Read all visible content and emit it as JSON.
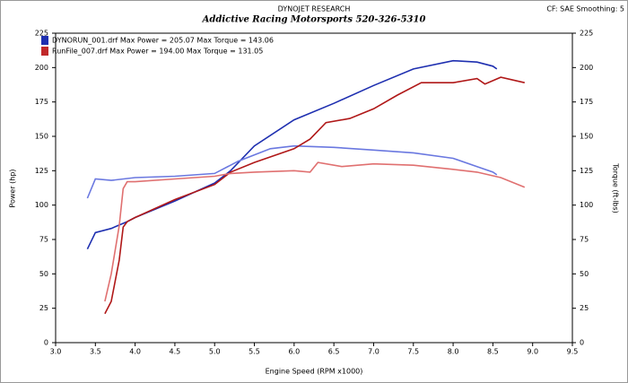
{
  "chart_data": {
    "type": "line",
    "title": "DYNOJET RESEARCH",
    "subtitle": "Addictive Racing Motorsports 520-326-5310",
    "corner_note": "CF: SAE  Smoothing: 5",
    "x_label": "Engine Speed (RPM x1000)",
    "y_label": "Power (hp)",
    "y2_label": "Torque (ft-lbs)",
    "legend": [
      {
        "text": "DYNORUN_001.drf Max Power = 205.07    Max Torque = 143.06",
        "color": "#1e2fb0"
      },
      {
        "text": "RunFile_007.drf Max Power = 194.00   Max Torque = 131.05",
        "color": "#c0282a"
      }
    ],
    "xlim": [
      3,
      9.5
    ],
    "xticks": [
      {
        "value": 3,
        "label": "3.0"
      },
      3.5,
      {
        "value": 4,
        "label": "4.0"
      },
      4.5,
      {
        "value": 5,
        "label": "5.0"
      },
      5.5,
      {
        "value": 6,
        "label": "6.0"
      },
      6.5,
      {
        "value": 7,
        "label": "7.0"
      },
      7.5,
      {
        "value": 8,
        "label": "8.0"
      },
      8.5,
      {
        "value": 9,
        "label": "9.0"
      },
      9.5
    ],
    "ylim": [
      0,
      225
    ],
    "yticks": [
      0,
      25,
      50,
      75,
      100,
      125,
      150,
      175,
      200,
      225
    ],
    "y2lim": [
      0,
      225
    ],
    "y2ticks": [
      0,
      25,
      50,
      75,
      100,
      125,
      150,
      175,
      200,
      225
    ],
    "series": [
      {
        "color": "#1e2fb0",
        "x": [
          3.4,
          3.5,
          3.7,
          3.9,
          4.0,
          4.5,
          5.0,
          5.2,
          5.5,
          6.0,
          6.5,
          7.0,
          7.5,
          8.0,
          8.3,
          8.5,
          8.55
        ],
        "values": [
          68,
          80,
          83,
          88,
          91,
          103,
          116,
          125,
          143,
          162,
          174,
          187,
          199,
          205,
          204,
          201,
          199
        ]
      },
      {
        "color": "#6a78e0",
        "axis": "y2",
        "x": [
          3.4,
          3.5,
          3.7,
          4.0,
          4.5,
          5.0,
          5.3,
          5.7,
          6.0,
          6.5,
          7.0,
          7.5,
          8.0,
          8.3,
          8.5,
          8.55
        ],
        "values": [
          105,
          119,
          118,
          120,
          121,
          123,
          132,
          141,
          143,
          142,
          140,
          138,
          134,
          128,
          124,
          122
        ]
      },
      {
        "color": "#b01818",
        "x": [
          3.62,
          3.7,
          3.8,
          3.85,
          3.9,
          4.0,
          4.5,
          5.0,
          5.2,
          5.5,
          6.0,
          6.2,
          6.4,
          6.7,
          7.0,
          7.3,
          7.6,
          8.0,
          8.3,
          8.4,
          8.6,
          8.9
        ],
        "values": [
          21,
          30,
          60,
          84,
          88,
          91,
          104,
          115,
          124,
          131,
          141,
          148,
          160,
          163,
          170,
          180,
          189,
          189,
          192,
          188,
          193,
          189
        ]
      },
      {
        "color": "#e07070",
        "axis": "y2",
        "x": [
          3.62,
          3.7,
          3.8,
          3.85,
          3.9,
          4.0,
          4.5,
          5.0,
          5.2,
          5.5,
          6.0,
          6.2,
          6.3,
          6.6,
          7.0,
          7.5,
          8.0,
          8.3,
          8.6,
          8.9
        ],
        "values": [
          30,
          50,
          85,
          112,
          117,
          117,
          119,
          121,
          123,
          124,
          125,
          124,
          131,
          128,
          130,
          129,
          126,
          124,
          120,
          113
        ]
      }
    ]
  }
}
